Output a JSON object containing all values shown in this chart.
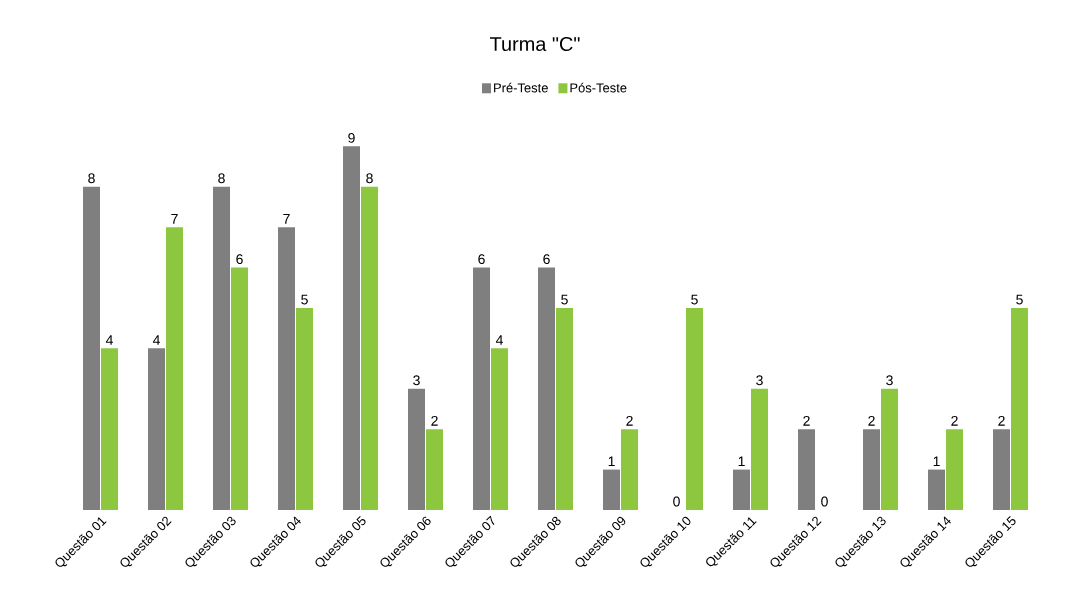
{
  "chart_data": {
    "type": "bar",
    "title": "Turma \"C\"",
    "categories": [
      "Questão 01",
      "Questão 02",
      "Questão 03",
      "Questão 04",
      "Questão 05",
      "Questão 06",
      "Questão 07",
      "Questão 08",
      "Questão 09",
      "Questão 10",
      "Questão 11",
      "Questão 12",
      "Questão 13",
      "Questão 14",
      "Questão 15"
    ],
    "series": [
      {
        "name": "Pré-Teste",
        "color": "#7f7f7f",
        "values": [
          8,
          4,
          8,
          7,
          9,
          3,
          6,
          6,
          1,
          0,
          1,
          2,
          2,
          1,
          2
        ]
      },
      {
        "name": "Pós-Teste",
        "color": "#8dc63f",
        "values": [
          4,
          7,
          6,
          5,
          8,
          2,
          4,
          5,
          2,
          5,
          3,
          0,
          3,
          2,
          5
        ]
      }
    ],
    "data_labels": true,
    "legend": "top"
  }
}
